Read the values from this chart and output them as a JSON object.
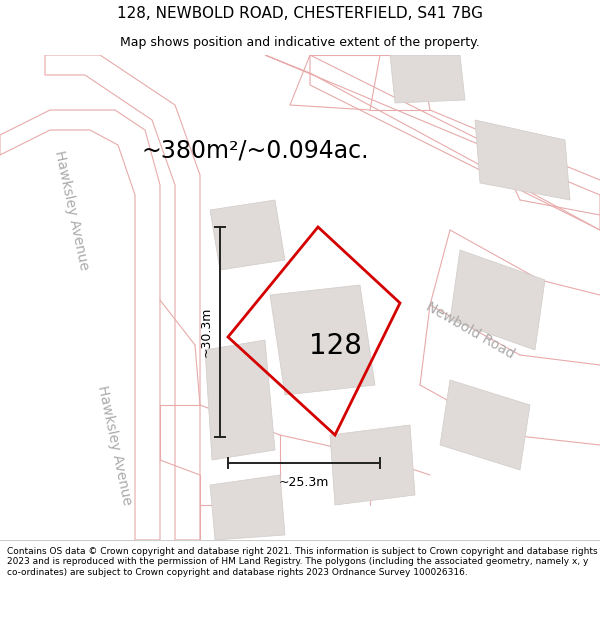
{
  "title_line1": "128, NEWBOLD ROAD, CHESTERFIELD, S41 7BG",
  "title_line2": "Map shows position and indicative extent of the property.",
  "area_text": "~380m²/~0.094ac.",
  "label_128": "128",
  "dim_height": "~30.3m",
  "dim_width": "~25.3m",
  "road_label": "Newbold Road",
  "street_label_upper": "Hawksley Avenue",
  "street_label_lower": "Hawksley Avenue",
  "footer_text": "Contains OS data © Crown copyright and database right 2021. This information is subject to Crown copyright and database rights 2023 and is reproduced with the permission of HM Land Registry. The polygons (including the associated geometry, namely x, y co-ordinates) are subject to Crown copyright and database rights 2023 Ordnance Survey 100026316.",
  "map_bg": "#f7f4f2",
  "road_fill": "#ffffff",
  "red_color": "#d40000",
  "road_line_color": "#e8aaaa",
  "building_color": "#e0dbd8",
  "building_edge": "#d0cbc8",
  "dim_color": "#222222",
  "road_text_color": "#aaaaaa",
  "prop_fill": "none",
  "title_fontsize": 11,
  "subtitle_fontsize": 9,
  "area_fontsize": 17,
  "label_fontsize": 20,
  "dim_fontsize": 9,
  "road_fontsize": 10,
  "footer_fontsize": 6.5
}
